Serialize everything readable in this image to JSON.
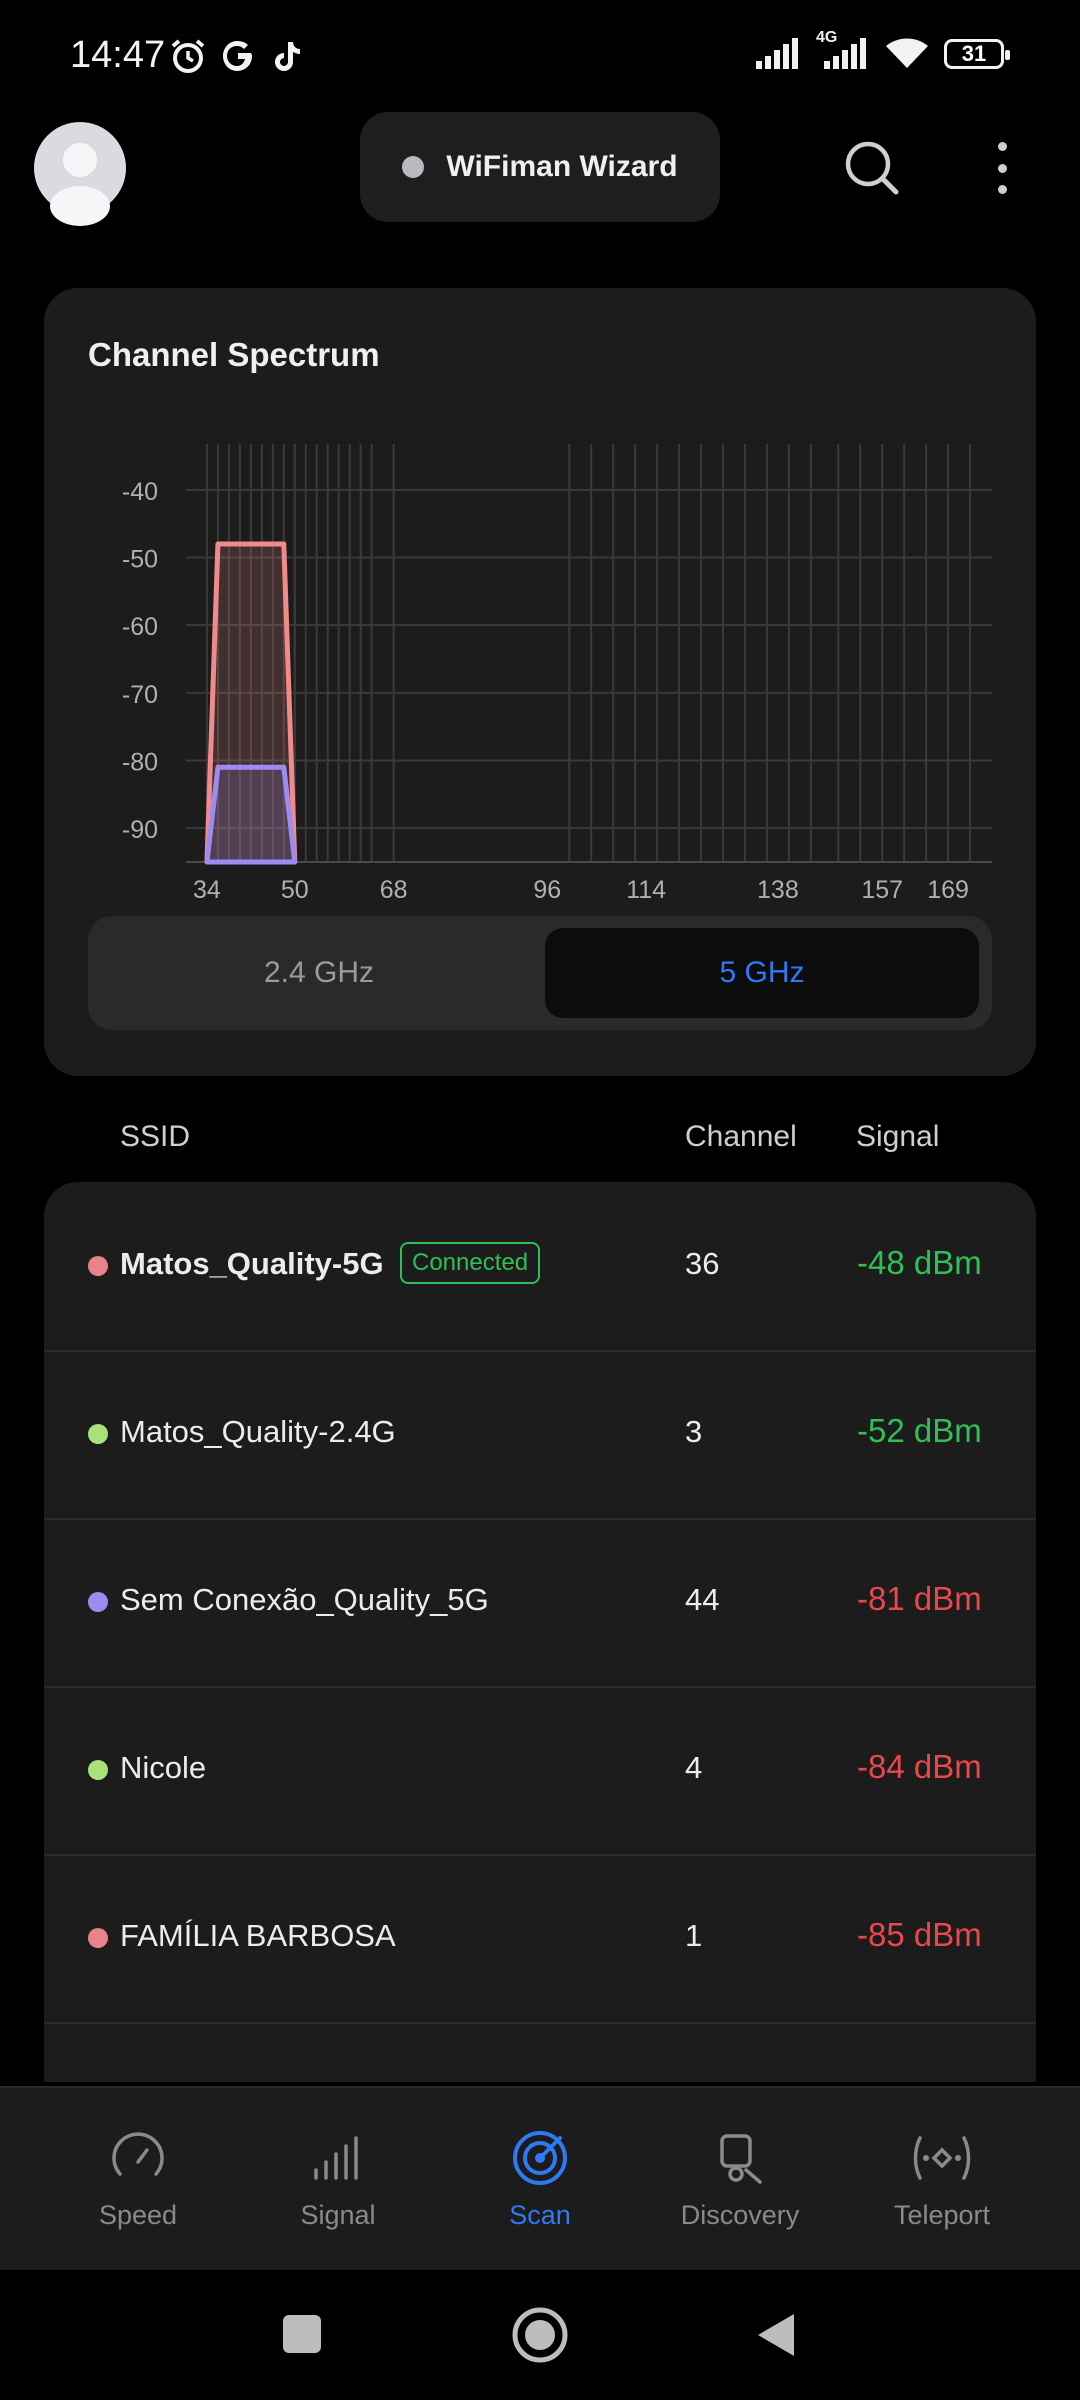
{
  "status_bar": {
    "time": "14:47",
    "network_label": "4G",
    "battery": "31",
    "icons": [
      "alarm-icon",
      "google-icon",
      "tiktok-icon",
      "signal-icon",
      "wifi-icon",
      "battery-icon"
    ]
  },
  "header": {
    "title": "WiFiman Wizard",
    "icons": [
      "avatar",
      "search-icon",
      "more-vertical-icon"
    ]
  },
  "spectrum": {
    "title": "Channel Spectrum",
    "bands": [
      "2.4 GHz",
      "5 GHz"
    ],
    "selected_band": "5 GHz",
    "accent_color": "#2f79f5"
  },
  "chart_data": {
    "type": "area",
    "title": "",
    "xlabel": "",
    "ylabel": "",
    "ylim": [
      -95,
      -35
    ],
    "x_ticks": [
      34,
      50,
      68,
      96,
      114,
      138,
      157,
      169
    ],
    "y_ticks": [
      -40,
      -50,
      -60,
      -70,
      -80,
      -90
    ],
    "grid": true,
    "series": [
      {
        "name": "Matos_Quality-5G",
        "color": "#f28a8a",
        "x": [
          34,
          36,
          48,
          50
        ],
        "y": [
          -95,
          -48,
          -48,
          -95
        ]
      },
      {
        "name": "Sem Conexão_Quality_5G",
        "color": "#9d8cf0",
        "x": [
          34,
          36,
          48,
          50
        ],
        "y": [
          -95,
          -81,
          -81,
          -95
        ]
      }
    ]
  },
  "table": {
    "headers": {
      "ssid": "SSID",
      "channel": "Channel",
      "signal": "Signal"
    },
    "rows": [
      {
        "ssid": "Matos_Quality-5G",
        "badge": "Connected",
        "channel": "36",
        "signal": "-48 dBm",
        "dot_color": "#e8838a",
        "signal_color": "#2fbf55"
      },
      {
        "ssid": "Matos_Quality-2.4G",
        "channel": "3",
        "signal": "-52 dBm",
        "dot_color": "#a9e27a",
        "signal_color": "#2fbf55"
      },
      {
        "ssid": "Sem Conexão_Quality_5G",
        "channel": "44",
        "signal": "-81 dBm",
        "dot_color": "#9d8cf0",
        "signal_color": "#e8474c"
      },
      {
        "ssid": "Nicole",
        "channel": "4",
        "signal": "-84 dBm",
        "dot_color": "#a9e27a",
        "signal_color": "#e8474c"
      },
      {
        "ssid": "FAMÍLIA BARBOSA",
        "channel": "1",
        "signal": "-85 dBm",
        "dot_color": "#e8838a",
        "signal_color": "#e8474c"
      }
    ]
  },
  "bottom_nav": [
    {
      "label": "Speed",
      "icon": "speedometer-icon"
    },
    {
      "label": "Signal",
      "icon": "signal-bars-icon"
    },
    {
      "label": "Scan",
      "icon": "radar-icon",
      "active": true
    },
    {
      "label": "Discovery",
      "icon": "device-search-icon"
    },
    {
      "label": "Teleport",
      "icon": "teleport-icon"
    }
  ],
  "system_nav": [
    "recents-button",
    "home-button",
    "back-button"
  ]
}
